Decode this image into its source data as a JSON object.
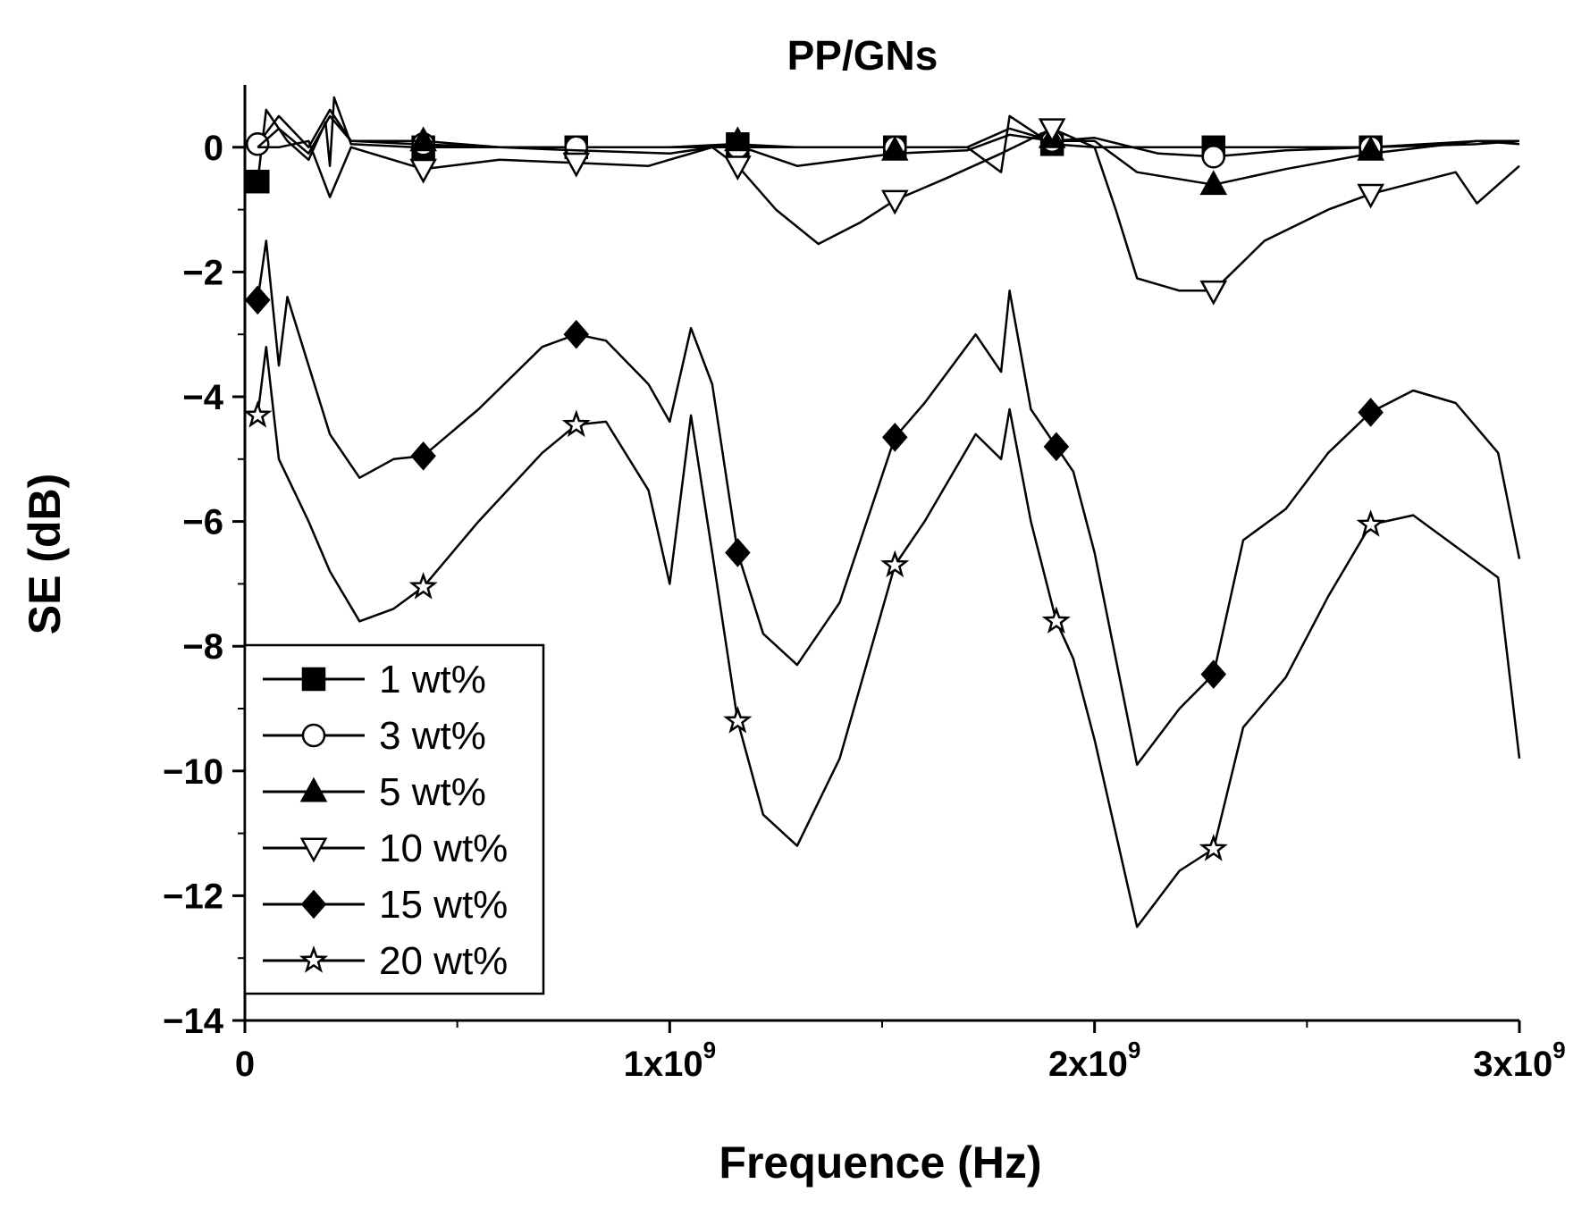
{
  "chart_data": {
    "type": "line",
    "title": "PP/GNs",
    "xlabel": "Frequence (Hz)",
    "ylabel": "SE (dB)",
    "xlim": [
      0,
      3000000000
    ],
    "ylim": [
      -14,
      1
    ],
    "x_ticks": [
      {
        "value": 0,
        "mantissa": "0",
        "exponent": ""
      },
      {
        "value": 1000000000,
        "mantissa": "1x10",
        "exponent": "9"
      },
      {
        "value": 2000000000,
        "mantissa": "2x10",
        "exponent": "9"
      },
      {
        "value": 3000000000,
        "mantissa": "3x10",
        "exponent": "9"
      }
    ],
    "y_ticks": [
      {
        "value": 0,
        "label": "0"
      },
      {
        "value": -2,
        "label": "−2"
      },
      {
        "value": -4,
        "label": "−4"
      },
      {
        "value": -6,
        "label": "−6"
      },
      {
        "value": -8,
        "label": "−8"
      },
      {
        "value": -10,
        "label": "−10"
      },
      {
        "value": -12,
        "label": "−12"
      },
      {
        "value": -14,
        "label": "−14"
      }
    ],
    "grid": false,
    "legend_position": "bottom-left",
    "series": [
      {
        "name": "1 wt%",
        "marker": "filled-square",
        "x": [
          30000000.0,
          50000000.0,
          80000000.0,
          100000000.0,
          150000000.0,
          190000000.0,
          200000000.0,
          210000000.0,
          250000000.0,
          400000000.0,
          600000000.0,
          780000000.0,
          1000000000.0,
          1150000000.0,
          1300000000.0,
          1530000000.0,
          1700000000.0,
          1780000000.0,
          1800000000.0,
          1900000000.0,
          2000000000.0,
          2280000000.0,
          2500000000.0,
          2650000000.0,
          2900000000.0,
          3000000000.0
        ],
        "y": [
          -0.55,
          0.6,
          0.3,
          0.1,
          -0.2,
          0.4,
          -0.3,
          0.8,
          0.05,
          0.0,
          0.0,
          0.0,
          0.0,
          0.05,
          0.0,
          0.0,
          0.0,
          -0.4,
          0.5,
          0.05,
          0.0,
          0.0,
          0.0,
          0.0,
          0.05,
          0.1
        ]
      },
      {
        "name": "3 wt%",
        "marker": "open-circle",
        "x": [
          30000000.0,
          80000000.0,
          150000000.0,
          200000000.0,
          250000000.0,
          400000000.0,
          600000000.0,
          780000000.0,
          1000000000.0,
          1150000000.0,
          1300000000.0,
          1530000000.0,
          1700000000.0,
          1800000000.0,
          1900000000.0,
          2000000000.0,
          2150000000.0,
          2280000000.0,
          2450000000.0,
          2650000000.0,
          2900000000.0,
          3000000000.0
        ],
        "y": [
          0.05,
          0.5,
          0.0,
          0.6,
          0.1,
          0.05,
          0.0,
          0.0,
          0.0,
          0.0,
          0.0,
          0.0,
          0.0,
          0.3,
          0.1,
          0.15,
          -0.1,
          -0.15,
          -0.05,
          0.0,
          0.1,
          0.1
        ]
      },
      {
        "name": "5 wt%",
        "marker": "filled-triangle",
        "x": [
          30000000.0,
          80000000.0,
          150000000.0,
          200000000.0,
          250000000.0,
          420000000.0,
          600000000.0,
          780000000.0,
          1000000000.0,
          1150000000.0,
          1300000000.0,
          1530000000.0,
          1700000000.0,
          1800000000.0,
          1900000000.0,
          2000000000.0,
          2100000000.0,
          2280000000.0,
          2450000000.0,
          2650000000.0,
          2900000000.0,
          3000000000.0
        ],
        "y": [
          0.0,
          0.3,
          -0.1,
          0.5,
          0.1,
          0.1,
          0.0,
          -0.05,
          -0.1,
          0.05,
          -0.3,
          -0.1,
          -0.05,
          0.2,
          0.1,
          0.1,
          -0.4,
          -0.6,
          -0.35,
          -0.1,
          0.1,
          0.05
        ]
      },
      {
        "name": "10 wt%",
        "marker": "open-triangle-down",
        "x": [
          30000000.0,
          80000000.0,
          150000000.0,
          200000000.0,
          250000000.0,
          420000000.0,
          600000000.0,
          780000000.0,
          950000000.0,
          1100000000.0,
          1160000000.0,
          1250000000.0,
          1350000000.0,
          1450000000.0,
          1530000000.0,
          1650000000.0,
          1780000000.0,
          1900000000.0,
          2000000000.0,
          2050000000.0,
          2100000000.0,
          2200000000.0,
          2280000000.0,
          2400000000.0,
          2550000000.0,
          2650000000.0,
          2850000000.0,
          2900000000.0,
          3000000000.0
        ],
        "y": [
          0.0,
          0.0,
          0.1,
          -0.8,
          0.0,
          -0.35,
          -0.2,
          -0.25,
          -0.3,
          0.0,
          -0.3,
          -1.0,
          -1.55,
          -1.2,
          -0.85,
          -0.5,
          -0.1,
          0.3,
          0.0,
          -1.0,
          -2.1,
          -2.3,
          -2.3,
          -1.5,
          -1.0,
          -0.75,
          -0.4,
          -0.9,
          -0.3
        ]
      },
      {
        "name": "15 wt%",
        "marker": "filled-diamond",
        "x": [
          30000000.0,
          50000000.0,
          80000000.0,
          100000000.0,
          200000000.0,
          270000000.0,
          350000000.0,
          420000000.0,
          550000000.0,
          700000000.0,
          780000000.0,
          850000000.0,
          950000000.0,
          1000000000.0,
          1050000000.0,
          1100000000.0,
          1160000000.0,
          1220000000.0,
          1300000000.0,
          1400000000.0,
          1530000000.0,
          1600000000.0,
          1720000000.0,
          1780000000.0,
          1800000000.0,
          1850000000.0,
          1910000000.0,
          1950000000.0,
          2000000000.0,
          2100000000.0,
          2200000000.0,
          2280000000.0,
          2350000000.0,
          2450000000.0,
          2550000000.0,
          2650000000.0,
          2750000000.0,
          2850000000.0,
          2950000000.0,
          3000000000.0
        ],
        "y": [
          -2.45,
          -1.5,
          -3.5,
          -2.4,
          -4.6,
          -5.3,
          -5.0,
          -4.95,
          -4.2,
          -3.2,
          -3.0,
          -3.1,
          -3.8,
          -4.4,
          -2.9,
          -3.8,
          -6.5,
          -7.8,
          -8.3,
          -7.3,
          -4.65,
          -4.1,
          -3.0,
          -3.6,
          -2.3,
          -4.2,
          -4.8,
          -5.2,
          -6.5,
          -9.9,
          -9.0,
          -8.45,
          -6.3,
          -5.8,
          -4.9,
          -4.25,
          -3.9,
          -4.1,
          -4.9,
          -6.6
        ]
      },
      {
        "name": "20 wt%",
        "marker": "open-star",
        "x": [
          30000000.0,
          50000000.0,
          80000000.0,
          150000000.0,
          200000000.0,
          270000000.0,
          350000000.0,
          420000000.0,
          550000000.0,
          700000000.0,
          780000000.0,
          850000000.0,
          950000000.0,
          1000000000.0,
          1050000000.0,
          1100000000.0,
          1160000000.0,
          1220000000.0,
          1300000000.0,
          1400000000.0,
          1530000000.0,
          1600000000.0,
          1720000000.0,
          1780000000.0,
          1800000000.0,
          1850000000.0,
          1910000000.0,
          1950000000.0,
          2000000000.0,
          2100000000.0,
          2200000000.0,
          2280000000.0,
          2350000000.0,
          2450000000.0,
          2550000000.0,
          2650000000.0,
          2750000000.0,
          2850000000.0,
          2950000000.0,
          3000000000.0
        ],
        "y": [
          -4.3,
          -3.2,
          -5.0,
          -6.0,
          -6.8,
          -7.6,
          -7.4,
          -7.05,
          -6.0,
          -4.9,
          -4.45,
          -4.4,
          -5.5,
          -7.0,
          -4.3,
          -6.5,
          -9.2,
          -10.7,
          -11.2,
          -9.8,
          -6.7,
          -6.0,
          -4.6,
          -5.0,
          -4.2,
          -6.0,
          -7.6,
          -8.2,
          -9.5,
          -12.5,
          -11.6,
          -11.25,
          -9.3,
          -8.5,
          -7.2,
          -6.05,
          -5.9,
          -6.4,
          -6.9,
          -9.8
        ]
      }
    ],
    "marker_points": {
      "1 wt%": [
        [
          30000000.0,
          -0.55
        ],
        [
          420000000.0,
          0.0
        ],
        [
          780000000.0,
          0.0
        ],
        [
          1160000000.0,
          0.05
        ],
        [
          1530000000.0,
          0.0
        ],
        [
          1900000000.0,
          0.05
        ],
        [
          2280000000.0,
          0.0
        ],
        [
          2650000000.0,
          0.0
        ]
      ],
      "3 wt%": [
        [
          30000000.0,
          0.05
        ],
        [
          420000000.0,
          0.05
        ],
        [
          780000000.0,
          0.0
        ],
        [
          1160000000.0,
          0.0
        ],
        [
          1530000000.0,
          0.0
        ],
        [
          1900000000.0,
          0.1
        ],
        [
          2280000000.0,
          -0.15
        ],
        [
          2650000000.0,
          0.0
        ]
      ],
      "5 wt%": [
        [
          420000000.0,
          0.1
        ],
        [
          1160000000.0,
          0.1
        ],
        [
          1530000000.0,
          -0.05
        ],
        [
          1900000000.0,
          0.15
        ],
        [
          2280000000.0,
          -0.6
        ],
        [
          2650000000.0,
          -0.05
        ]
      ],
      "10 wt%": [
        [
          420000000.0,
          -0.35
        ],
        [
          780000000.0,
          -0.25
        ],
        [
          1160000000.0,
          -0.3
        ],
        [
          1530000000.0,
          -0.85
        ],
        [
          1900000000.0,
          0.3
        ],
        [
          2280000000.0,
          -2.3
        ],
        [
          2650000000.0,
          -0.75
        ]
      ],
      "15 wt%": [
        [
          30000000.0,
          -2.45
        ],
        [
          420000000.0,
          -4.95
        ],
        [
          780000000.0,
          -3.0
        ],
        [
          1160000000.0,
          -6.5
        ],
        [
          1530000000.0,
          -4.65
        ],
        [
          1910000000.0,
          -4.8
        ],
        [
          2280000000.0,
          -8.45
        ],
        [
          2650000000.0,
          -4.25
        ]
      ],
      "20 wt%": [
        [
          30000000.0,
          -4.3
        ],
        [
          420000000.0,
          -7.05
        ],
        [
          780000000.0,
          -4.45
        ],
        [
          1160000000.0,
          -9.2
        ],
        [
          1530000000.0,
          -6.7
        ],
        [
          1910000000.0,
          -7.6
        ],
        [
          2280000000.0,
          -11.25
        ],
        [
          2650000000.0,
          -6.05
        ]
      ]
    }
  }
}
